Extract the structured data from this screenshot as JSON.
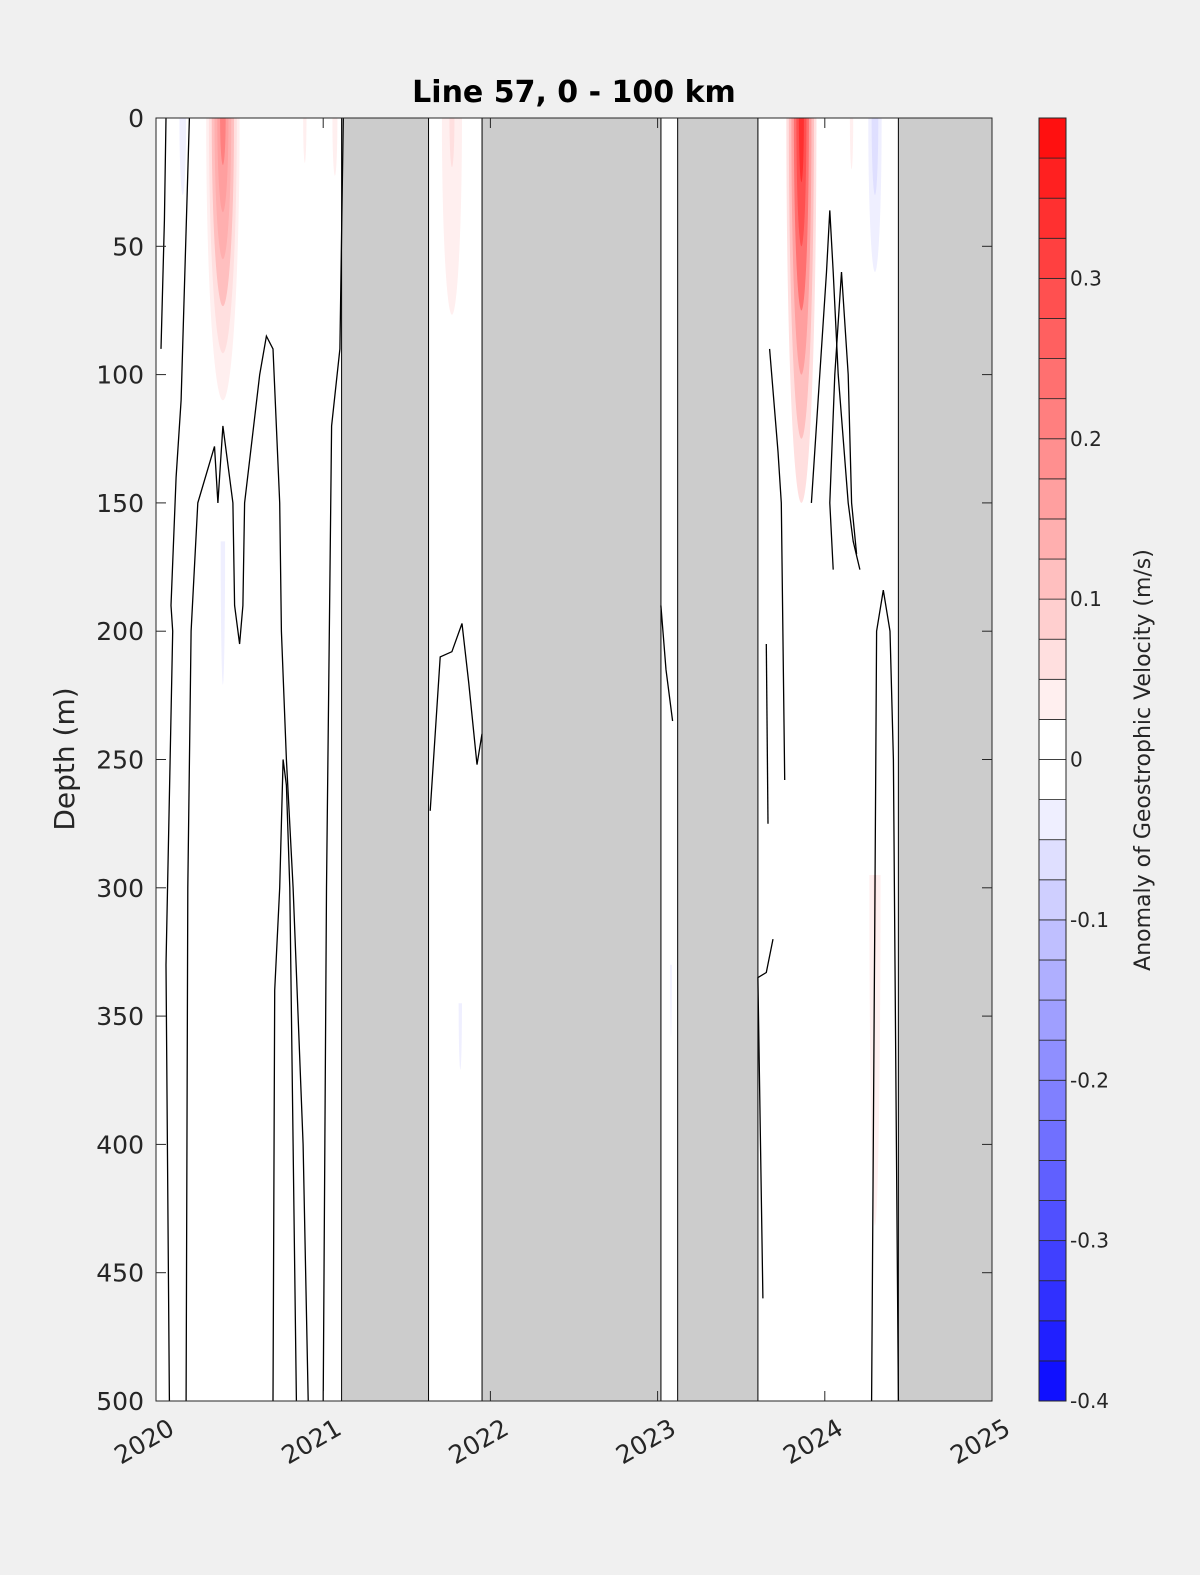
{
  "chart_data": {
    "type": "heatmap",
    "title": "Line 57, 0 - 100 km",
    "ylabel": "Depth (m)",
    "xlabel": "",
    "xlim": [
      2020,
      2025
    ],
    "ylim": [
      0,
      500
    ],
    "y_reversed": true,
    "x_ticks": [
      "2020",
      "2021",
      "2022",
      "2023",
      "2024",
      "2025"
    ],
    "y_ticks": [
      "0",
      "50",
      "100",
      "150",
      "200",
      "250",
      "300",
      "350",
      "400",
      "450",
      "500"
    ],
    "grid": false,
    "missing_color": "#cccccc",
    "missing_intervals": [
      [
        2021.11,
        2021.63
      ],
      [
        2021.95,
        2023.02
      ],
      [
        2023.12,
        2023.6
      ],
      [
        2024.44,
        2025.0
      ]
    ],
    "colorbar": {
      "label": "Anomaly of Geostrophic Velocity (m/s)",
      "min": -0.4,
      "max": 0.4,
      "levels_step": 0.025,
      "ticks": [
        "-0.4",
        "-0.3",
        "-0.2",
        "-0.1",
        "0",
        "0.1",
        "0.2",
        "0.3"
      ],
      "low_color": "#0000ff",
      "mid_color": "#ffffff",
      "high_color": "#ff0000"
    },
    "anomaly_features": [
      {
        "x": 2020.4,
        "halfwidth": 0.1,
        "top": 0,
        "bottom": 110,
        "value": 0.2
      },
      {
        "x": 2020.16,
        "halfwidth": 0.04,
        "top": 0,
        "bottom": 60,
        "value": -0.04
      },
      {
        "x": 2020.4,
        "halfwidth": 0.08,
        "top": 165,
        "bottom": 500,
        "value": -0.03
      },
      {
        "x": 2020.89,
        "halfwidth": 0.02,
        "top": 0,
        "bottom": 35,
        "value": 0.04
      },
      {
        "x": 2021.07,
        "halfwidth": 0.03,
        "top": 0,
        "bottom": 45,
        "value": 0.04
      },
      {
        "x": 2021.77,
        "halfwidth": 0.09,
        "top": 0,
        "bottom": 115,
        "value": 0.06
      },
      {
        "x": 2021.82,
        "halfwidth": 0.06,
        "top": 345,
        "bottom": 500,
        "value": -0.03
      },
      {
        "x": 2023.86,
        "halfwidth": 0.09,
        "top": 0,
        "bottom": 150,
        "value": 0.35
      },
      {
        "x": 2024.16,
        "halfwidth": 0.02,
        "top": 0,
        "bottom": 40,
        "value": 0.04
      },
      {
        "x": 2024.3,
        "halfwidth": 0.06,
        "top": 0,
        "bottom": 90,
        "value": -0.07
      },
      {
        "x": 2024.3,
        "halfwidth": 0.05,
        "top": 295,
        "bottom": 500,
        "value": 0.05
      },
      {
        "x": 2023.08,
        "halfwidth": 0.03,
        "top": 330,
        "bottom": 500,
        "value": -0.03
      }
    ],
    "zero_contours": [
      [
        [
          2020.03,
          90
        ],
        [
          2020.05,
          40
        ],
        [
          2020.06,
          0
        ]
      ],
      [
        [
          2020.08,
          500
        ],
        [
          2020.06,
          330
        ],
        [
          2020.1,
          200
        ],
        [
          2020.09,
          190
        ],
        [
          2020.12,
          140
        ],
        [
          2020.15,
          110
        ],
        [
          2020.2,
          0
        ]
      ],
      [
        [
          2020.18,
          500
        ],
        [
          2020.19,
          300
        ],
        [
          2020.21,
          200
        ],
        [
          2020.25,
          150
        ],
        [
          2020.35,
          128
        ],
        [
          2020.37,
          150
        ],
        [
          2020.4,
          120
        ],
        [
          2020.46,
          150
        ],
        [
          2020.47,
          190
        ],
        [
          2020.5,
          205
        ],
        [
          2020.52,
          190
        ],
        [
          2020.53,
          150
        ],
        [
          2020.62,
          100
        ],
        [
          2020.66,
          85
        ],
        [
          2020.7,
          90
        ],
        [
          2020.74,
          150
        ],
        [
          2020.75,
          200
        ],
        [
          2020.78,
          250
        ],
        [
          2020.82,
          300
        ],
        [
          2020.88,
          400
        ],
        [
          2020.91,
          500
        ]
      ],
      [
        [
          2020.7,
          500
        ],
        [
          2020.71,
          340
        ],
        [
          2020.74,
          300
        ],
        [
          2020.76,
          250
        ],
        [
          2020.78,
          260
        ],
        [
          2020.8,
          300
        ],
        [
          2020.84,
          500
        ]
      ],
      [
        [
          2021.0,
          500
        ],
        [
          2021.02,
          300
        ],
        [
          2021.05,
          120
        ],
        [
          2021.1,
          90
        ],
        [
          2021.12,
          0
        ]
      ],
      [
        [
          2021.64,
          270
        ],
        [
          2021.7,
          210
        ],
        [
          2021.77,
          208
        ],
        [
          2021.83,
          197
        ],
        [
          2021.87,
          220
        ],
        [
          2021.92,
          252
        ],
        [
          2021.95,
          240
        ]
      ],
      [
        [
          2023.02,
          190
        ],
        [
          2023.05,
          215
        ],
        [
          2023.09,
          235
        ]
      ],
      [
        [
          2023.63,
          460
        ],
        [
          2023.6,
          335
        ],
        [
          2023.65,
          333
        ],
        [
          2023.69,
          320
        ]
      ],
      [
        [
          2023.66,
          275
        ],
        [
          2023.65,
          205
        ]
      ],
      [
        [
          2023.67,
          90
        ],
        [
          2023.72,
          130
        ],
        [
          2023.74,
          150
        ],
        [
          2023.76,
          258
        ]
      ],
      [
        [
          2023.92,
          150
        ],
        [
          2023.96,
          110
        ],
        [
          2024.01,
          60
        ],
        [
          2024.03,
          36
        ],
        [
          2024.05,
          60
        ],
        [
          2024.08,
          100
        ],
        [
          2024.14,
          150
        ],
        [
          2024.17,
          165
        ],
        [
          2024.21,
          176
        ]
      ],
      [
        [
          2024.05,
          176
        ],
        [
          2024.03,
          150
        ],
        [
          2024.06,
          100
        ],
        [
          2024.1,
          60
        ],
        [
          2024.14,
          100
        ],
        [
          2024.16,
          150
        ],
        [
          2024.19,
          170
        ]
      ],
      [
        [
          2024.28,
          500
        ],
        [
          2024.3,
          300
        ],
        [
          2024.31,
          200
        ],
        [
          2024.35,
          184
        ],
        [
          2024.39,
          200
        ],
        [
          2024.41,
          250
        ],
        [
          2024.42,
          330
        ],
        [
          2024.44,
          500
        ]
      ]
    ]
  }
}
